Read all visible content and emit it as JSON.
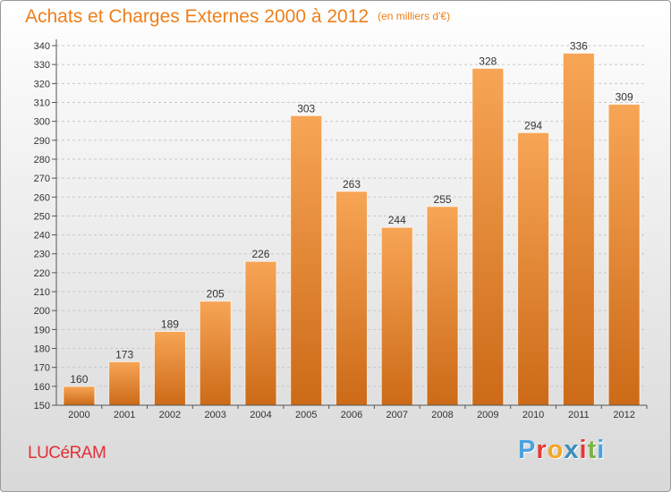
{
  "header": {
    "title": "Achats et Charges Externes 2000 à 2012",
    "unit": "(en milliers d'€)"
  },
  "footer": {
    "place": "LUCéRAM",
    "brand_letters": [
      "P",
      "r",
      "o",
      "x",
      "i",
      "t",
      "i"
    ]
  },
  "colors": {
    "title": "#ef7f1a",
    "place": "#e52e36",
    "bar_top": "#f7a556",
    "bar_bottom": "#cc6a17",
    "grid": "#c8c8c8",
    "brand": [
      "#4aa3df",
      "#e53935",
      "#f5a623",
      "#3c8dbc",
      "#e53935",
      "#7cb342",
      "#4aa3df"
    ]
  },
  "chart_data": {
    "type": "bar",
    "title": "Achats et Charges Externes 2000 à 2012",
    "subtitle": "(en milliers d'€)",
    "categories": [
      "2000",
      "2001",
      "2002",
      "2003",
      "2004",
      "2005",
      "2006",
      "2007",
      "2008",
      "2009",
      "2010",
      "2011",
      "2012"
    ],
    "values": [
      160,
      173,
      189,
      205,
      226,
      303,
      263,
      244,
      255,
      328,
      294,
      336,
      309
    ],
    "ylim": [
      150,
      340
    ],
    "yticks": [
      150,
      160,
      170,
      180,
      190,
      200,
      210,
      220,
      230,
      240,
      250,
      260,
      270,
      280,
      290,
      300,
      310,
      320,
      330,
      340
    ],
    "grid": true,
    "data_labels": true
  }
}
